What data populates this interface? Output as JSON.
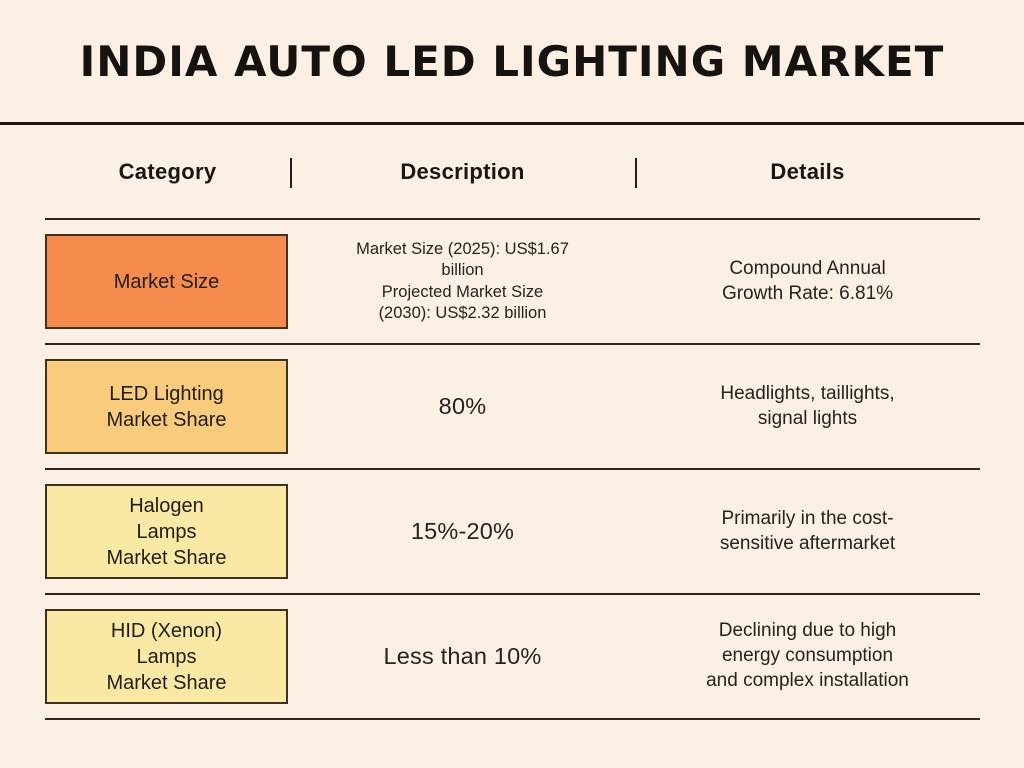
{
  "page": {
    "title": "INDIA AUTO LED LIGHTING MARKET",
    "background_color": "#fbf0e3",
    "line_color": "#1c1713",
    "text_color": "#1f1d1a"
  },
  "chart_data": {
    "type": "table",
    "title": "INDIA AUTO LED LIGHTING MARKET",
    "columns": [
      "Category",
      "Description",
      "Details"
    ],
    "rows": [
      {
        "category": "Market Size",
        "category_color": "#f58c4e",
        "description": "Market Size (2025): US$1.67\nbillion\nProjected Market Size\n(2030): US$2.32 billion",
        "details": "Compound Annual\nGrowth Rate: 6.81%",
        "market_size_2025_usd_billion": 1.67,
        "projected_market_size_2030_usd_billion": 2.32,
        "cagr_percent": 6.81
      },
      {
        "category": "LED Lighting\nMarket Share",
        "category_color": "#f9cb7c",
        "description": "80%",
        "details": "Headlights, taillights,\nsignal lights",
        "share_percent": 80
      },
      {
        "category": "Halogen\nLamps\nMarket Share",
        "category_color": "#fae9a4",
        "description": "15%-20%",
        "details": "Primarily in the cost-\nsensitive aftermarket",
        "share_percent_range": [
          15,
          20
        ]
      },
      {
        "category": "HID (Xenon)\nLamps\nMarket Share",
        "category_color": "#fae9a4",
        "description": "Less than 10%",
        "details": "Declining due to high\nenergy consumption\nand complex installation",
        "share_percent_max": 10
      }
    ]
  }
}
